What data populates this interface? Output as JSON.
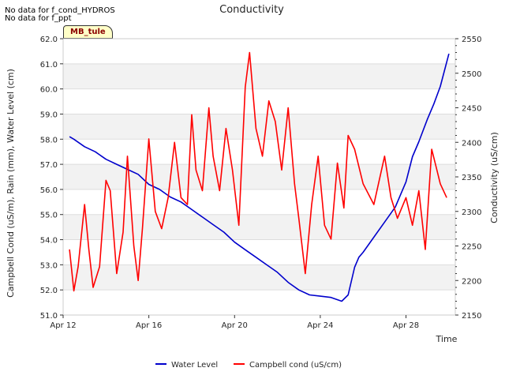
{
  "notes": {
    "nodata1": "No data for f_cond_HYDROS",
    "nodata2": "No data for f_ppt",
    "station": "MB_tule"
  },
  "chart_data": {
    "type": "line",
    "title": "Conductivity",
    "xlabel": "Time",
    "ylabel_left": "Campbell Cond (uS/m), Rain (mm), Water Level (cm)",
    "ylabel_right": "Conductivity (uS/cm)",
    "x_range": [
      12.0,
      30.3
    ],
    "x_ticks": [
      {
        "value": 12,
        "label": "Apr 12"
      },
      {
        "value": 16,
        "label": "Apr 16"
      },
      {
        "value": 20,
        "label": "Apr 20"
      },
      {
        "value": 24,
        "label": "Apr 24"
      },
      {
        "value": 28,
        "label": "Apr 28"
      }
    ],
    "ylim_left": [
      51.0,
      62.0
    ],
    "yticks_left": [
      "51.0",
      "52.0",
      "53.0",
      "54.0",
      "55.0",
      "56.0",
      "57.0",
      "58.0",
      "59.0",
      "60.0",
      "61.0",
      "62.0"
    ],
    "ylim_right": [
      2150,
      2550
    ],
    "yticks_right": [
      "2150",
      "2200",
      "2250",
      "2300",
      "2350",
      "2400",
      "2450",
      "2500",
      "2550"
    ],
    "grid": true,
    "legend_position": "bottom",
    "series": [
      {
        "name": "Water Level",
        "axis": "left",
        "color": "#0000cc",
        "x": [
          12.3,
          12.5,
          13.0,
          13.5,
          14.0,
          14.5,
          15.0,
          15.5,
          16.0,
          16.5,
          17.0,
          17.5,
          18.0,
          18.5,
          19.0,
          19.5,
          20.0,
          20.5,
          21.0,
          21.5,
          22.0,
          22.5,
          23.0,
          23.5,
          24.0,
          24.5,
          25.0,
          25.3,
          25.6,
          25.8,
          26.0,
          26.5,
          27.0,
          27.5,
          28.0,
          28.3,
          28.6,
          29.0,
          29.3,
          29.6,
          30.0
        ],
        "y": [
          58.1,
          58.0,
          57.7,
          57.5,
          57.2,
          57.0,
          56.8,
          56.6,
          56.2,
          56.0,
          55.7,
          55.5,
          55.2,
          54.9,
          54.6,
          54.3,
          53.9,
          53.6,
          53.3,
          53.0,
          52.7,
          52.3,
          52.0,
          51.8,
          51.75,
          51.7,
          51.55,
          51.8,
          52.9,
          53.3,
          53.5,
          54.1,
          54.7,
          55.3,
          56.3,
          57.3,
          57.9,
          58.8,
          59.4,
          60.1,
          61.4
        ]
      },
      {
        "name": "Campbell cond (uS/cm)",
        "axis": "right",
        "color": "#ff0000",
        "x": [
          12.3,
          12.5,
          12.7,
          13.0,
          13.2,
          13.4,
          13.7,
          14.0,
          14.2,
          14.5,
          14.8,
          15.0,
          15.3,
          15.5,
          15.7,
          16.0,
          16.3,
          16.6,
          16.9,
          17.2,
          17.5,
          17.8,
          18.0,
          18.2,
          18.5,
          18.8,
          19.0,
          19.3,
          19.6,
          19.9,
          20.2,
          20.5,
          20.7,
          21.0,
          21.3,
          21.6,
          21.9,
          22.2,
          22.5,
          22.8,
          23.0,
          23.3,
          23.6,
          23.9,
          24.2,
          24.5,
          24.8,
          25.1,
          25.3,
          25.6,
          26.0,
          26.5,
          27.0,
          27.3,
          27.6,
          28.0,
          28.3,
          28.6,
          28.9,
          29.2,
          29.4,
          29.6,
          29.9
        ],
        "y": [
          2245,
          2185,
          2220,
          2310,
          2245,
          2190,
          2220,
          2345,
          2330,
          2210,
          2270,
          2380,
          2250,
          2200,
          2275,
          2405,
          2300,
          2275,
          2320,
          2400,
          2320,
          2310,
          2440,
          2360,
          2330,
          2450,
          2380,
          2330,
          2420,
          2360,
          2280,
          2480,
          2530,
          2420,
          2380,
          2460,
          2430,
          2360,
          2450,
          2340,
          2290,
          2210,
          2310,
          2380,
          2280,
          2260,
          2370,
          2305,
          2410,
          2390,
          2340,
          2310,
          2380,
          2320,
          2290,
          2320,
          2280,
          2330,
          2245,
          2390,
          2365,
          2340,
          2320
        ]
      }
    ]
  }
}
